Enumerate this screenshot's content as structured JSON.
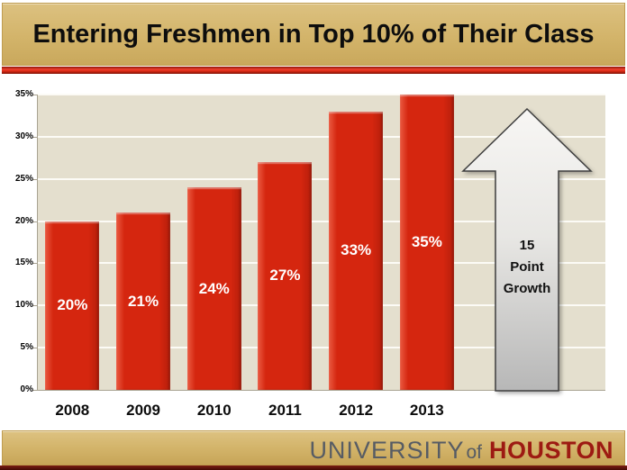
{
  "slide": {
    "title": "Entering Freshmen in Top 10% of Their Class",
    "footer": {
      "university": "UNIVERSITY",
      "of": "of",
      "houston": "HOUSTON"
    }
  },
  "chart_data": {
    "type": "bar",
    "title": "Entering Freshmen in Top 10% of Their Class",
    "categories": [
      "2008",
      "2009",
      "2010",
      "2011",
      "2012",
      "2013"
    ],
    "values": [
      20,
      21,
      24,
      27,
      33,
      35
    ],
    "bar_labels": [
      "20%",
      "21%",
      "24%",
      "27%",
      "33%",
      "35%"
    ],
    "xlabel": "",
    "ylabel": "",
    "ylim": [
      0,
      35
    ],
    "y_tick_step": 5,
    "y_tick_labels": [
      "0%",
      "5%",
      "10%",
      "15%",
      "20%",
      "25%",
      "30%",
      "35%"
    ],
    "grid": true,
    "legend": "none",
    "bar_color": "#d5260f",
    "plot_background": "#e4dfce",
    "annotation": {
      "shape": "up-arrow",
      "lines": [
        "15",
        "Point",
        "Growth"
      ],
      "meaning": "15 Point Growth"
    }
  },
  "colors": {
    "banner_gold": "#d3b46a",
    "accent_red_strip": "#dd2a15",
    "bar_red": "#d5260f",
    "plot_beige": "#e4dfce",
    "gridline_white": "#fcfbf6",
    "arrow_gray_top": "#f4f3f1",
    "arrow_gray_bottom": "#b9b9b9",
    "arrow_outline": "#3e3e3e",
    "university_gray": "#575c64",
    "houston_red": "#9d1a12",
    "bottom_maroon": "#5c100a"
  }
}
